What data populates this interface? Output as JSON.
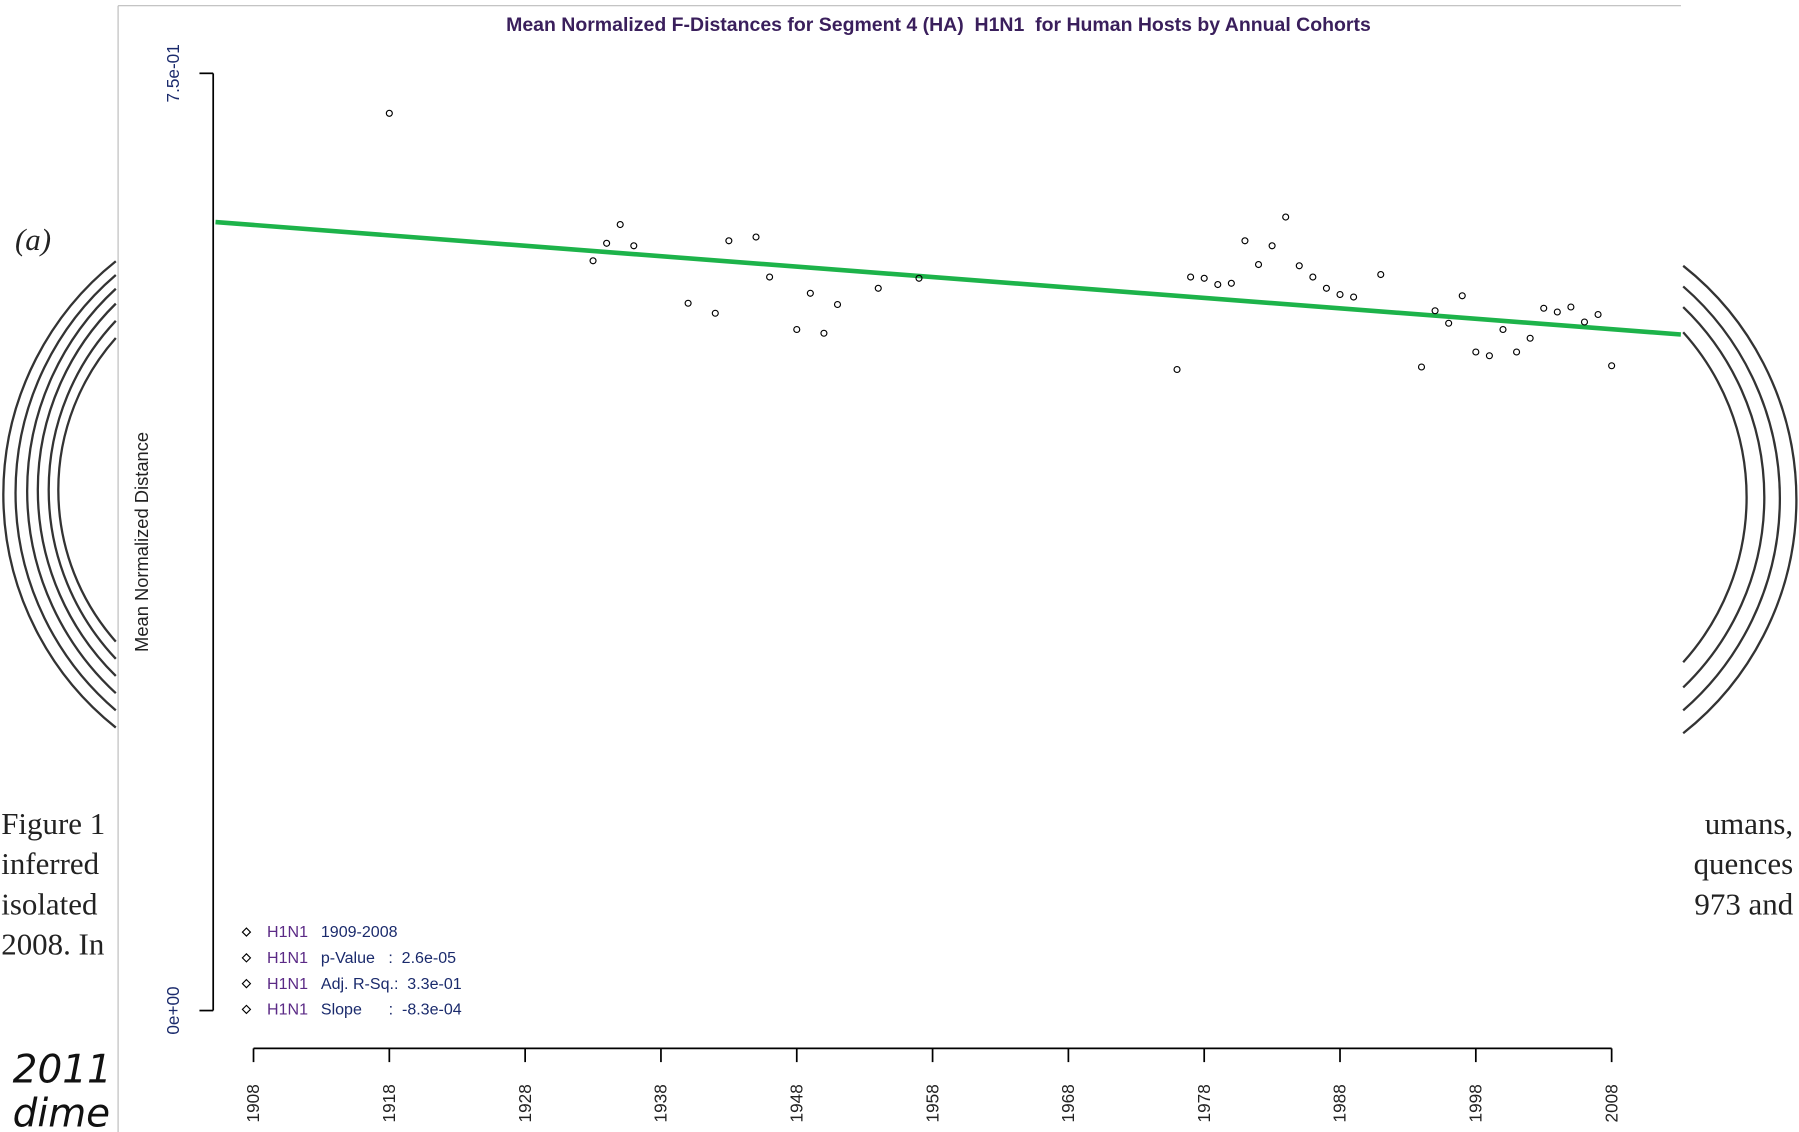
{
  "page_fragments": {
    "label": "(a)",
    "left": [
      "Figure 1",
      "inferred",
      "isolated",
      "2008. In"
    ],
    "right": [
      "umans,",
      "quences",
      "973 and"
    ],
    "bottom": [
      "2011",
      "dime"
    ]
  },
  "chart_data": {
    "type": "scatter",
    "title": "Mean Normalized F-Distances for Segment 4 (HA)  H1N1  for Human Hosts by Annual Cohorts",
    "y_label": "Mean Normalized Distance",
    "xlim": [
      1905.2,
      2013.1
    ],
    "ylim": [
      0,
      0.75
    ],
    "xticks": [
      1908,
      1918,
      1928,
      1938,
      1948,
      1958,
      1968,
      1978,
      1988,
      1998,
      2008
    ],
    "yticks": [
      {
        "value": 0,
        "label": "0e+00"
      },
      {
        "value": 0.75,
        "label": "7.5e-01"
      }
    ],
    "series": [
      {
        "name": "H1N1",
        "color": "#000000",
        "x": [
          1918,
          1933,
          1934,
          1935,
          1936,
          1940,
          1942,
          1943,
          1945,
          1946,
          1948,
          1949,
          1950,
          1951,
          1954,
          1957,
          1976,
          1977,
          1978,
          1979,
          1980,
          1981,
          1982,
          1983,
          1984,
          1985,
          1986,
          1987,
          1988,
          1989,
          1991,
          1994,
          1995,
          1996,
          1997,
          1998,
          1999,
          2000,
          2001,
          2002,
          2003,
          2004,
          2005,
          2006,
          2007,
          2008
        ],
        "values": [
          0.718,
          0.6,
          0.614,
          0.629,
          0.612,
          0.566,
          0.558,
          0.616,
          0.619,
          0.587,
          0.545,
          0.574,
          0.542,
          0.565,
          0.578,
          0.586,
          0.513,
          0.587,
          0.586,
          0.581,
          0.582,
          0.616,
          0.597,
          0.612,
          0.635,
          0.596,
          0.587,
          0.578,
          0.573,
          0.571,
          0.589,
          0.515,
          0.56,
          0.55,
          0.572,
          0.527,
          0.524,
          0.545,
          0.527,
          0.538,
          0.562,
          0.559,
          0.563,
          0.551,
          0.557,
          0.516
        ]
      }
    ],
    "trend": {
      "color": "#1db34a",
      "x": [
        1905.2,
        2013.1
      ],
      "values": [
        0.631,
        0.541
      ]
    },
    "legend": [
      {
        "label": "H1N1",
        "text": "1909-2008"
      },
      {
        "label": "H1N1",
        "text": "p-Value   :  2.6e-05"
      },
      {
        "label": "H1N1",
        "text": "Adj. R-Sq.:  3.3e-01"
      },
      {
        "label": "H1N1",
        "text": "Slope      :  -8.3e-04"
      }
    ],
    "legend_position": "lower left"
  }
}
